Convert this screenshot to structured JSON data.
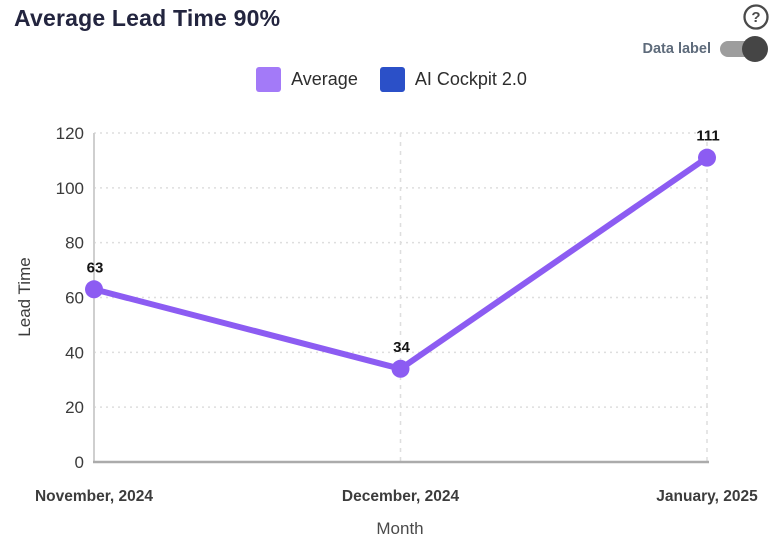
{
  "header": {
    "title": "Average Lead Time 90%",
    "help_icon": "question-mark-circle",
    "data_label_toggle": {
      "label": "Data label",
      "state": "on"
    }
  },
  "legend": [
    {
      "label": "Average",
      "color": "#A37AF8"
    },
    {
      "label": "AI Cockpit 2.0",
      "color": "#2B50C8"
    }
  ],
  "chart_data": {
    "type": "line",
    "title": "Average Lead Time 90%",
    "categories": [
      "November, 2024",
      "December, 2024",
      "January, 2025"
    ],
    "series": [
      {
        "name": "Average",
        "values": [
          63,
          34,
          111
        ],
        "color": "#8C5CF2",
        "data_labels_visible": true
      },
      {
        "name": "AI Cockpit 2.0",
        "values": [],
        "color": "#2B50C8",
        "data_labels_visible": false
      }
    ],
    "xlabel": "Month",
    "ylabel": "Lead Time",
    "ylim": [
      0,
      120
    ],
    "yticks": [
      0,
      20,
      40,
      60,
      80,
      100,
      120
    ],
    "grid": true,
    "legend_position": "top"
  },
  "colors": {
    "title_text": "#23253F",
    "axis_text": "#3B3B3B",
    "category_text": "#3C3C3C",
    "data_label_text": "#141414",
    "grid_line": "#DEDEDE",
    "axis_line_bottom": "#ABABAB",
    "axis_line_left": "#CFCFCF",
    "toggle_track": "#9D9D9D",
    "toggle_knob": "#454545",
    "help_icon": "#4A4A4A"
  }
}
